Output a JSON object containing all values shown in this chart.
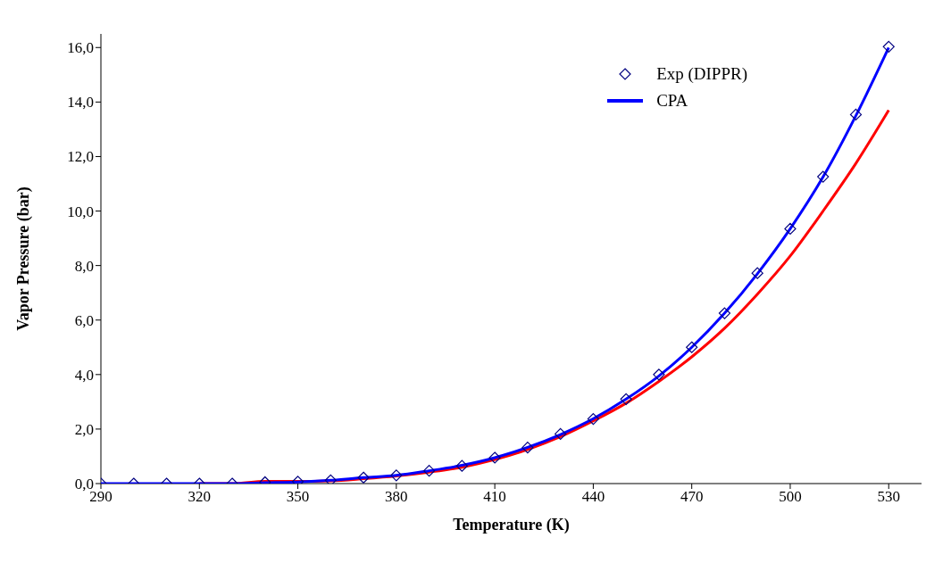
{
  "chart_data": {
    "type": "line",
    "xlabel": "Temperature (K)",
    "ylabel": "Vapor Pressure (bar)",
    "x": [
      290,
      300,
      310,
      320,
      330,
      340,
      350,
      360,
      370,
      380,
      390,
      400,
      410,
      420,
      430,
      440,
      450,
      460,
      470,
      480,
      490,
      500,
      510,
      520,
      530
    ],
    "series": [
      {
        "name": "Exp (DIPPR)",
        "type": "scatter",
        "marker": "diamond",
        "color": "#000080",
        "values": [
          0,
          0,
          0,
          0,
          0,
          0.05,
          0.07,
          0.12,
          0.22,
          0.3,
          0.47,
          0.65,
          0.95,
          1.32,
          1.82,
          2.37,
          3.1,
          4.0,
          5.0,
          6.25,
          7.72,
          9.35,
          11.26,
          13.54,
          16.03
        ]
      },
      {
        "color": "#ff0000",
        "values": [
          null,
          null,
          null,
          0,
          0,
          0.08,
          0.08,
          0.1,
          0.18,
          0.28,
          0.42,
          0.6,
          0.88,
          1.25,
          1.72,
          2.3,
          2.95,
          3.75,
          4.65,
          5.7,
          6.95,
          8.35,
          10.0,
          11.75,
          13.7
        ]
      },
      {
        "name": "CPA",
        "color": "#0000ff",
        "values": [
          0,
          0,
          0,
          0,
          0,
          0.03,
          0.06,
          0.12,
          0.22,
          0.3,
          0.47,
          0.67,
          0.95,
          1.33,
          1.8,
          2.38,
          3.1,
          3.95,
          5.0,
          6.25,
          7.7,
          9.35,
          11.25,
          13.5,
          16.0
        ]
      }
    ],
    "xlim": [
      290,
      540
    ],
    "xticks": [
      290,
      320,
      350,
      380,
      410,
      440,
      470,
      500,
      530
    ],
    "ylim": [
      0,
      16.5
    ],
    "yticks": [
      {
        "value": 0,
        "label": "0,0"
      },
      {
        "value": 2,
        "label": "2,0"
      },
      {
        "value": 4,
        "label": "4,0"
      },
      {
        "value": 6,
        "label": "6,0"
      },
      {
        "value": 8,
        "label": "8,0"
      },
      {
        "value": 10,
        "label": "10,0"
      },
      {
        "value": 12,
        "label": "12,0"
      },
      {
        "value": 14,
        "label": "14,0"
      },
      {
        "value": 16,
        "label": "16,0"
      }
    ],
    "legend": "top right",
    "grid": false,
    "line_style": "solid"
  }
}
